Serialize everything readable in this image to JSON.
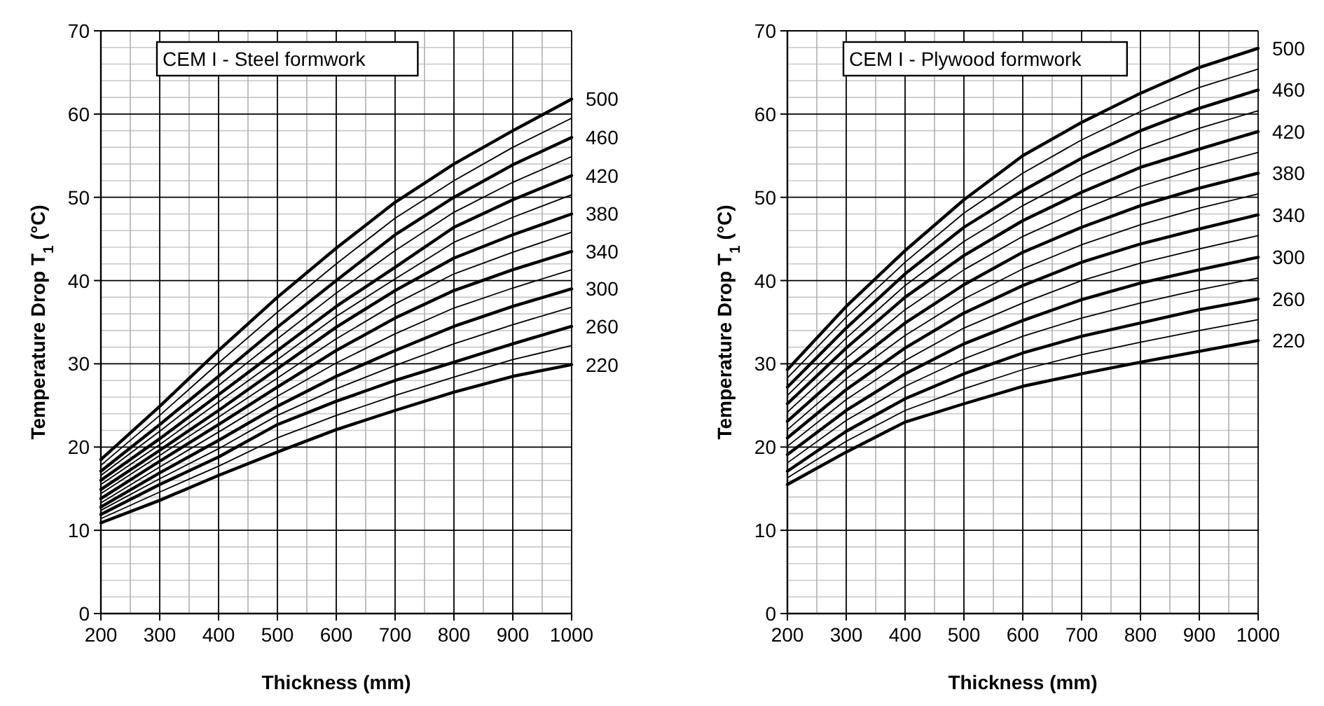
{
  "chart_data": [
    {
      "type": "line",
      "xlabel": "Thickness (mm)",
      "ylabel": "Temperature Drop T$_{1}$ (°C)",
      "annotations": [
        "CEM I - Steel formwork"
      ],
      "x": [
        200,
        300,
        400,
        500,
        600,
        700,
        800,
        900,
        1000
      ],
      "xlim": [
        200,
        1000
      ],
      "xticks": [
        200,
        300,
        400,
        500,
        600,
        700,
        800,
        900,
        1000
      ],
      "ylim": [
        0,
        70
      ],
      "yticks": [
        0,
        10,
        20,
        30,
        40,
        50,
        60,
        70
      ],
      "grid": true,
      "line_style": "solid",
      "series": [
        {
          "name": "220",
          "color": "#000000",
          "values": [
            10.9,
            13.6,
            16.6,
            19.4,
            22.1,
            24.4,
            26.6,
            28.5,
            29.9
          ]
        },
        {
          "color": "#000000",
          "values": [
            11.4,
            14.6,
            17.7,
            21.1,
            23.8,
            26.2,
            28.4,
            30.5,
            32.2
          ]
        },
        {
          "name": "260",
          "color": "#000000",
          "values": [
            11.9,
            15.5,
            18.8,
            22.7,
            25.5,
            28,
            30.2,
            32.4,
            34.5
          ]
        },
        {
          "color": "#000000",
          "values": [
            12.4,
            16.2,
            19.8,
            23.8,
            27,
            29.8,
            32.4,
            34.7,
            36.8
          ]
        },
        {
          "name": "300",
          "color": "#000000",
          "values": [
            12.8,
            16.9,
            20.8,
            24.9,
            28.5,
            31.6,
            34.5,
            36.9,
            39
          ]
        },
        {
          "color": "#000000",
          "values": [
            13.3,
            17.6,
            21.8,
            26.1,
            30.1,
            33.6,
            36.7,
            39.1,
            41.3
          ]
        },
        {
          "name": "340",
          "color": "#000000",
          "values": [
            13.8,
            18.3,
            22.7,
            27.2,
            31.6,
            35.5,
            38.8,
            41.3,
            43.5
          ]
        },
        {
          "color": "#000000",
          "values": [
            14.4,
            19,
            23.6,
            28.3,
            33,
            37.2,
            40.8,
            43.4,
            45.8
          ]
        },
        {
          "name": "380",
          "color": "#000000",
          "values": [
            14.9,
            19.6,
            24.4,
            29.4,
            34.4,
            38.8,
            42.7,
            45.5,
            48
          ]
        },
        {
          "color": "#000000",
          "values": [
            15.5,
            20.3,
            25.4,
            30.5,
            35.7,
            40.2,
            44.6,
            47.6,
            50.3
          ]
        },
        {
          "name": "420",
          "color": "#000000",
          "values": [
            16,
            21,
            26.3,
            31.6,
            36.9,
            41.6,
            46.4,
            49.7,
            52.6
          ]
        },
        {
          "color": "#000000",
          "values": [
            16.6,
            21.9,
            27.4,
            33,
            38.5,
            43.6,
            48.2,
            51.8,
            54.9
          ]
        },
        {
          "name": "460",
          "color": "#000000",
          "values": [
            17.1,
            22.7,
            28.5,
            34.4,
            40,
            45.5,
            50,
            53.9,
            57.2
          ]
        },
        {
          "color": "#000000",
          "values": [
            17.8,
            23.8,
            30.1,
            36.2,
            42,
            47.5,
            52,
            56,
            59.5
          ]
        },
        {
          "name": "500",
          "color": "#000000",
          "values": [
            18.5,
            24.9,
            31.6,
            38,
            43.9,
            49.4,
            54,
            58,
            61.8
          ]
        }
      ]
    },
    {
      "type": "line",
      "xlabel": "Thickness (mm)",
      "ylabel": "Temperature Drop T$_{1}$ (°C)",
      "annotations": [
        "CEM I - Plywood formwork"
      ],
      "x": [
        200,
        300,
        400,
        500,
        600,
        700,
        800,
        900,
        1000
      ],
      "xlim": [
        200,
        1000
      ],
      "xticks": [
        200,
        300,
        400,
        500,
        600,
        700,
        800,
        900,
        1000
      ],
      "ylim": [
        0,
        70
      ],
      "yticks": [
        0,
        10,
        20,
        30,
        40,
        50,
        60,
        70
      ],
      "grid": true,
      "line_style": "solid",
      "series": [
        {
          "name": "220",
          "color": "#000000",
          "values": [
            15.5,
            19.4,
            23,
            25.2,
            27.3,
            28.8,
            30.2,
            31.5,
            32.8
          ]
        },
        {
          "color": "#000000",
          "values": [
            16.3,
            20.7,
            24.4,
            27,
            29.3,
            31.1,
            32.6,
            34,
            35.3
          ]
        },
        {
          "name": "260",
          "color": "#000000",
          "values": [
            17.1,
            21.9,
            25.8,
            28.8,
            31.3,
            33.3,
            34.9,
            36.5,
            37.8
          ]
        },
        {
          "color": "#000000",
          "values": [
            18.1,
            23.2,
            27.3,
            30.6,
            33.3,
            35.5,
            37.3,
            38.9,
            40.3
          ]
        },
        {
          "name": "300",
          "color": "#000000",
          "values": [
            19.1,
            24.4,
            28.8,
            32.4,
            35.2,
            37.7,
            39.7,
            41.3,
            42.8
          ]
        },
        {
          "color": "#000000",
          "values": [
            20.1,
            25.7,
            30.4,
            34.3,
            37.3,
            40,
            42.1,
            43.8,
            45.4
          ]
        },
        {
          "name": "340",
          "color": "#000000",
          "values": [
            21.1,
            26.9,
            31.9,
            36.1,
            39.4,
            42.2,
            44.4,
            46.2,
            47.9
          ]
        },
        {
          "color": "#000000",
          "values": [
            22.1,
            28.2,
            33.4,
            37.8,
            41.4,
            44.3,
            46.7,
            48.7,
            50.4
          ]
        },
        {
          "name": "380",
          "color": "#000000",
          "values": [
            23.1,
            29.4,
            34.9,
            39.5,
            43.4,
            46.4,
            49,
            51.1,
            52.9
          ]
        },
        {
          "color": "#000000",
          "values": [
            24.2,
            30.7,
            36.5,
            41.3,
            45.3,
            48.5,
            51.3,
            53.5,
            55.4
          ]
        },
        {
          "name": "420",
          "color": "#000000",
          "values": [
            25.2,
            31.9,
            38,
            43,
            47.2,
            50.6,
            53.6,
            55.8,
            57.9
          ]
        },
        {
          "color": "#000000",
          "values": [
            26.2,
            33.1,
            39.4,
            44.7,
            49,
            52.7,
            55.8,
            58.3,
            60.4
          ]
        },
        {
          "name": "460",
          "color": "#000000",
          "values": [
            27.2,
            34.3,
            40.8,
            46.4,
            50.8,
            54.7,
            58,
            60.7,
            62.9
          ]
        },
        {
          "color": "#000000",
          "values": [
            28.3,
            35.6,
            42.2,
            48.1,
            52.9,
            56.9,
            60.3,
            63.2,
            65.4
          ]
        },
        {
          "name": "500",
          "color": "#000000",
          "values": [
            29.3,
            36.9,
            43.6,
            49.7,
            55,
            59,
            62.5,
            65.6,
            67.9
          ]
        }
      ]
    }
  ]
}
